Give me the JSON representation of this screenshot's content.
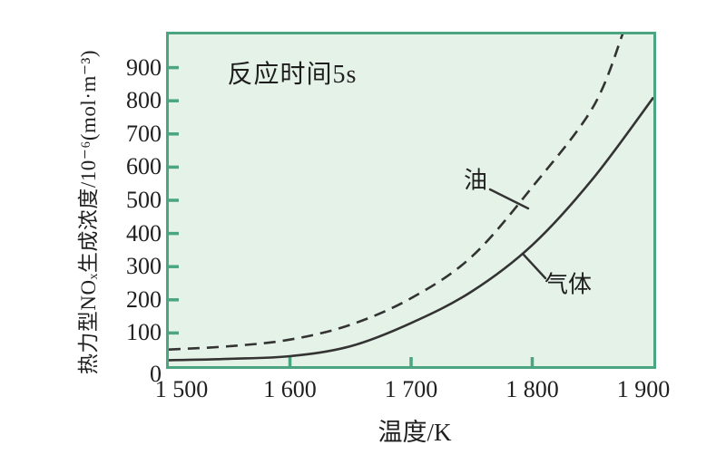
{
  "colors": {
    "plot_fill": "#e5f2e7",
    "plot_border": "#4aa580",
    "curve": "#333333",
    "text": "#1f1f1f"
  },
  "chart_data": {
    "type": "line",
    "title": "",
    "annotation": "反应时间5s",
    "xlabel": "温度/K",
    "ylabel": "热力型NOₓ生成浓度/10⁻⁶(mol·m⁻³)",
    "xlim": [
      1500,
      1900
    ],
    "ylim": [
      0,
      1000
    ],
    "x_ticks": [
      1500,
      1600,
      1700,
      1800,
      1900
    ],
    "x_tick_labels": [
      "1 500",
      "1 600",
      "1 700",
      "1 800",
      "1 900"
    ],
    "y_ticks": [
      0,
      100,
      200,
      300,
      400,
      500,
      600,
      700,
      800,
      900
    ],
    "grid": false,
    "legend": "inline-labels",
    "series": [
      {
        "name": "气体",
        "line_style": "solid",
        "x": [
          1500,
          1550,
          1600,
          1650,
          1700,
          1750,
          1800,
          1850,
          1900
        ],
        "values": [
          18,
          22,
          30,
          60,
          130,
          225,
          365,
          565,
          810
        ]
      },
      {
        "name": "油",
        "line_style": "dashed",
        "x": [
          1500,
          1550,
          1600,
          1650,
          1700,
          1750,
          1800,
          1850,
          1875
        ],
        "values": [
          50,
          60,
          80,
          125,
          205,
          330,
          540,
          780,
          1005
        ]
      }
    ]
  }
}
